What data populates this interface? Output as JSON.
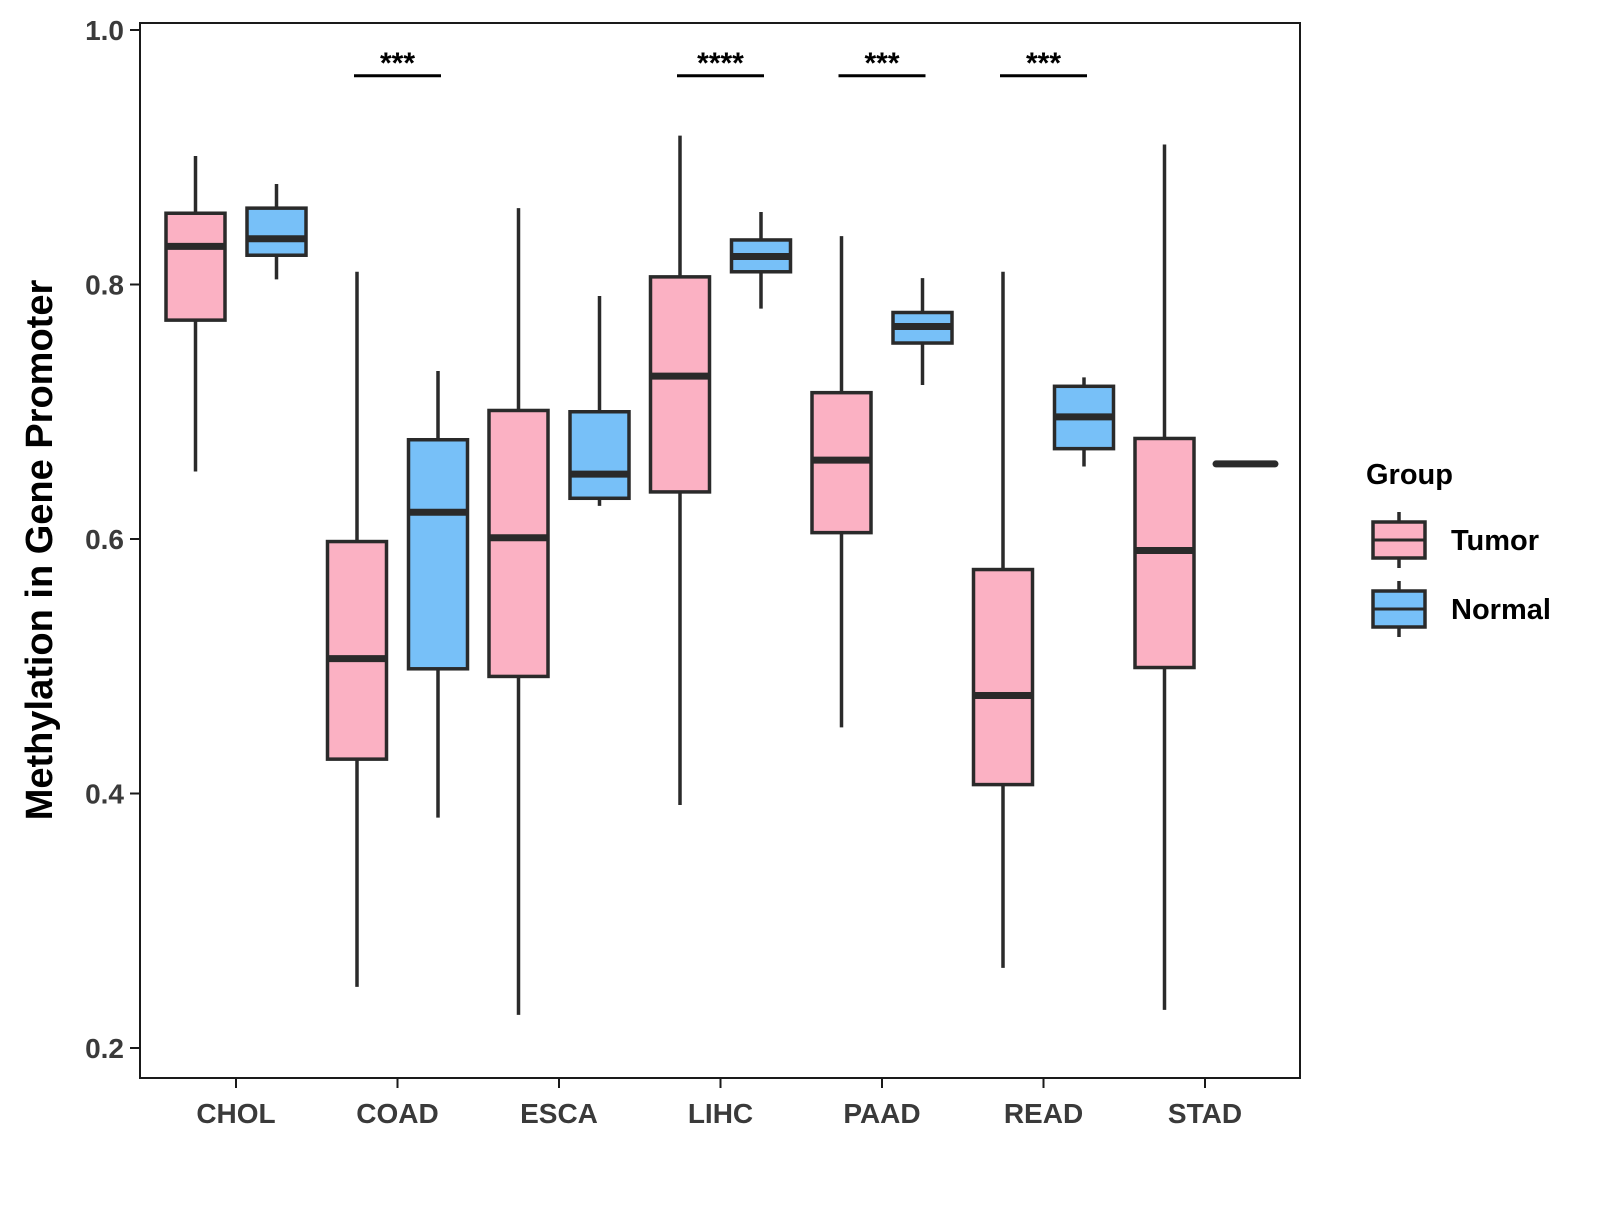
{
  "chart_data": {
    "type": "boxplot",
    "title": "",
    "xlabel": "",
    "ylabel": "Methylation in Gene Promoter",
    "ylim": [
      0.18,
      1.0
    ],
    "yticks": [
      0.2,
      0.4,
      0.6,
      0.8,
      1.0
    ],
    "ytick_labels": [
      "0.2",
      "0.4",
      "0.6",
      "0.8",
      "1.0"
    ],
    "categories": [
      "CHOL",
      "COAD",
      "ESCA",
      "LIHC",
      "PAAD",
      "READ",
      "STAD"
    ],
    "legend": {
      "title": "Group",
      "position": "right",
      "entries": [
        {
          "name": "Tumor",
          "color": "#fbb1c3"
        },
        {
          "name": "Normal",
          "color": "#77c0f8"
        }
      ]
    },
    "colors": {
      "Tumor": "#fbb1c3",
      "Normal": "#77c0f8",
      "outline": "#2a2a2a"
    },
    "series": [
      {
        "name": "Tumor",
        "boxes": [
          {
            "category": "CHOL",
            "whisker_low": 0.653,
            "q1": 0.772,
            "median": 0.83,
            "q3": 0.856,
            "whisker_high": 0.901
          },
          {
            "category": "COAD",
            "whisker_low": 0.248,
            "q1": 0.427,
            "median": 0.506,
            "q3": 0.598,
            "whisker_high": 0.81
          },
          {
            "category": "ESCA",
            "whisker_low": 0.226,
            "q1": 0.492,
            "median": 0.601,
            "q3": 0.701,
            "whisker_high": 0.86
          },
          {
            "category": "LIHC",
            "whisker_low": 0.391,
            "q1": 0.637,
            "median": 0.728,
            "q3": 0.806,
            "whisker_high": 0.917
          },
          {
            "category": "PAAD",
            "whisker_low": 0.452,
            "q1": 0.605,
            "median": 0.662,
            "q3": 0.715,
            "whisker_high": 0.838
          },
          {
            "category": "READ",
            "whisker_low": 0.263,
            "q1": 0.407,
            "median": 0.477,
            "q3": 0.576,
            "whisker_high": 0.81
          },
          {
            "category": "STAD",
            "whisker_low": 0.23,
            "q1": 0.499,
            "median": 0.591,
            "q3": 0.679,
            "whisker_high": 0.91
          }
        ]
      },
      {
        "name": "Normal",
        "boxes": [
          {
            "category": "CHOL",
            "whisker_low": 0.804,
            "q1": 0.823,
            "median": 0.836,
            "q3": 0.86,
            "whisker_high": 0.879
          },
          {
            "category": "COAD",
            "whisker_low": 0.381,
            "q1": 0.498,
            "median": 0.621,
            "q3": 0.678,
            "whisker_high": 0.732
          },
          {
            "category": "ESCA",
            "whisker_low": 0.626,
            "q1": 0.632,
            "median": 0.651,
            "q3": 0.7,
            "whisker_high": 0.791
          },
          {
            "category": "LIHC",
            "whisker_low": 0.781,
            "q1": 0.81,
            "median": 0.822,
            "q3": 0.835,
            "whisker_high": 0.857
          },
          {
            "category": "PAAD",
            "whisker_low": 0.721,
            "q1": 0.754,
            "median": 0.767,
            "q3": 0.778,
            "whisker_high": 0.805
          },
          {
            "category": "READ",
            "whisker_low": 0.657,
            "q1": 0.671,
            "median": 0.696,
            "q3": 0.72,
            "whisker_high": 0.727
          },
          {
            "category": "STAD",
            "whisker_low": 0.659,
            "q1": 0.659,
            "median": 0.659,
            "q3": 0.659,
            "whisker_high": 0.659
          }
        ]
      }
    ],
    "significance": [
      {
        "category": "COAD",
        "label": "***",
        "y": 0.964
      },
      {
        "category": "LIHC",
        "label": "****",
        "y": 0.964
      },
      {
        "category": "PAAD",
        "label": "***",
        "y": 0.964
      },
      {
        "category": "READ",
        "label": "***",
        "y": 0.964
      }
    ],
    "grid": false
  }
}
